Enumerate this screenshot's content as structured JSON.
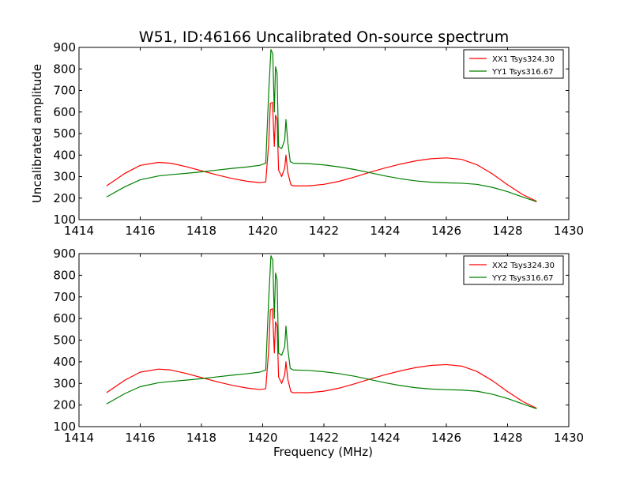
{
  "figure": {
    "title": "W51, ID:46166 Uncalibrated On-source spectrum"
  },
  "colors": {
    "xx": "#ff0000",
    "yy": "#008000"
  },
  "chart_data": [
    {
      "type": "line",
      "title": "W51, ID:46166 Uncalibrated On-source spectrum",
      "xlabel": "",
      "ylabel": "Uncalibrated amplitude",
      "xlim": [
        1414,
        1430
      ],
      "ylim": [
        100,
        900
      ],
      "xticks": [
        "1414",
        "1416",
        "1418",
        "1420",
        "1422",
        "1424",
        "1426",
        "1428",
        "1430"
      ],
      "yticks": [
        "100",
        "200",
        "300",
        "400",
        "500",
        "600",
        "700",
        "800",
        "900"
      ],
      "grid": false,
      "legend_position": "top-right",
      "series": [
        {
          "name": "XX1 Tsys324.30",
          "color": "#ff0000",
          "points": [
            [
              1414.9,
              257
            ],
            [
              1415.5,
              315
            ],
            [
              1416.0,
              352
            ],
            [
              1416.6,
              366
            ],
            [
              1417.0,
              362
            ],
            [
              1417.5,
              346
            ],
            [
              1418.0,
              327
            ],
            [
              1418.5,
              308
            ],
            [
              1419.0,
              291
            ],
            [
              1419.5,
              278
            ],
            [
              1419.9,
              272
            ],
            [
              1420.1,
              275
            ],
            [
              1420.2,
              460
            ],
            [
              1420.25,
              640
            ],
            [
              1420.32,
              645
            ],
            [
              1420.38,
              440
            ],
            [
              1420.42,
              585
            ],
            [
              1420.47,
              565
            ],
            [
              1420.52,
              330
            ],
            [
              1420.62,
              300
            ],
            [
              1420.72,
              340
            ],
            [
              1420.76,
              400
            ],
            [
              1420.82,
              320
            ],
            [
              1420.92,
              262
            ],
            [
              1421.0,
              257
            ],
            [
              1421.5,
              257
            ],
            [
              1422.0,
              264
            ],
            [
              1422.5,
              278
            ],
            [
              1423.0,
              298
            ],
            [
              1423.5,
              320
            ],
            [
              1424.0,
              340
            ],
            [
              1424.5,
              358
            ],
            [
              1425.0,
              373
            ],
            [
              1425.5,
              383
            ],
            [
              1426.0,
              387
            ],
            [
              1426.5,
              380
            ],
            [
              1427.0,
              355
            ],
            [
              1427.5,
              313
            ],
            [
              1428.0,
              262
            ],
            [
              1428.5,
              216
            ],
            [
              1428.95,
              185
            ]
          ]
        },
        {
          "name": "YY1 Tsys316.67",
          "color": "#008000",
          "points": [
            [
              1414.9,
              205
            ],
            [
              1415.5,
              253
            ],
            [
              1416.0,
              285
            ],
            [
              1416.6,
              303
            ],
            [
              1417.0,
              309
            ],
            [
              1417.5,
              315
            ],
            [
              1418.0,
              322
            ],
            [
              1418.5,
              330
            ],
            [
              1419.0,
              338
            ],
            [
              1419.5,
              345
            ],
            [
              1419.9,
              352
            ],
            [
              1420.1,
              362
            ],
            [
              1420.2,
              700
            ],
            [
              1420.27,
              890
            ],
            [
              1420.33,
              870
            ],
            [
              1420.38,
              600
            ],
            [
              1420.42,
              810
            ],
            [
              1420.47,
              780
            ],
            [
              1420.52,
              440
            ],
            [
              1420.62,
              430
            ],
            [
              1420.72,
              470
            ],
            [
              1420.76,
              565
            ],
            [
              1420.82,
              460
            ],
            [
              1420.9,
              370
            ],
            [
              1421.0,
              362
            ],
            [
              1421.5,
              360
            ],
            [
              1422.0,
              354
            ],
            [
              1422.5,
              345
            ],
            [
              1423.0,
              333
            ],
            [
              1423.5,
              318
            ],
            [
              1424.0,
              303
            ],
            [
              1424.5,
              290
            ],
            [
              1425.0,
              280
            ],
            [
              1425.5,
              274
            ],
            [
              1426.0,
              271
            ],
            [
              1426.5,
              269
            ],
            [
              1427.0,
              264
            ],
            [
              1427.5,
              250
            ],
            [
              1428.0,
              230
            ],
            [
              1428.5,
              205
            ],
            [
              1428.95,
              183
            ]
          ]
        }
      ]
    },
    {
      "type": "line",
      "title": "",
      "xlabel": "Frequency (MHz)",
      "ylabel": "",
      "xlim": [
        1414,
        1430
      ],
      "ylim": [
        100,
        900
      ],
      "xticks": [
        "1414",
        "1416",
        "1418",
        "1420",
        "1422",
        "1424",
        "1426",
        "1428",
        "1430"
      ],
      "yticks": [
        "100",
        "200",
        "300",
        "400",
        "500",
        "600",
        "700",
        "800",
        "900"
      ],
      "grid": false,
      "legend_position": "top-right",
      "series": [
        {
          "name": "XX2 Tsys324.30",
          "color": "#ff0000",
          "points": [
            [
              1414.9,
              257
            ],
            [
              1415.5,
              315
            ],
            [
              1416.0,
              352
            ],
            [
              1416.6,
              366
            ],
            [
              1417.0,
              362
            ],
            [
              1417.5,
              346
            ],
            [
              1418.0,
              327
            ],
            [
              1418.5,
              308
            ],
            [
              1419.0,
              291
            ],
            [
              1419.5,
              278
            ],
            [
              1419.9,
              272
            ],
            [
              1420.1,
              275
            ],
            [
              1420.2,
              460
            ],
            [
              1420.25,
              640
            ],
            [
              1420.32,
              645
            ],
            [
              1420.38,
              440
            ],
            [
              1420.42,
              585
            ],
            [
              1420.47,
              565
            ],
            [
              1420.52,
              330
            ],
            [
              1420.62,
              300
            ],
            [
              1420.72,
              340
            ],
            [
              1420.76,
              400
            ],
            [
              1420.82,
              320
            ],
            [
              1420.92,
              262
            ],
            [
              1421.0,
              257
            ],
            [
              1421.5,
              257
            ],
            [
              1422.0,
              264
            ],
            [
              1422.5,
              278
            ],
            [
              1423.0,
              298
            ],
            [
              1423.5,
              320
            ],
            [
              1424.0,
              340
            ],
            [
              1424.5,
              358
            ],
            [
              1425.0,
              373
            ],
            [
              1425.5,
              383
            ],
            [
              1426.0,
              387
            ],
            [
              1426.5,
              380
            ],
            [
              1427.0,
              355
            ],
            [
              1427.5,
              313
            ],
            [
              1428.0,
              262
            ],
            [
              1428.5,
              216
            ],
            [
              1428.95,
              185
            ]
          ]
        },
        {
          "name": "YY2 Tsys316.67",
          "color": "#008000",
          "points": [
            [
              1414.9,
              205
            ],
            [
              1415.5,
              253
            ],
            [
              1416.0,
              285
            ],
            [
              1416.6,
              303
            ],
            [
              1417.0,
              309
            ],
            [
              1417.5,
              315
            ],
            [
              1418.0,
              322
            ],
            [
              1418.5,
              330
            ],
            [
              1419.0,
              338
            ],
            [
              1419.5,
              345
            ],
            [
              1419.9,
              352
            ],
            [
              1420.1,
              362
            ],
            [
              1420.2,
              700
            ],
            [
              1420.27,
              890
            ],
            [
              1420.33,
              870
            ],
            [
              1420.38,
              600
            ],
            [
              1420.42,
              810
            ],
            [
              1420.47,
              780
            ],
            [
              1420.52,
              440
            ],
            [
              1420.62,
              430
            ],
            [
              1420.72,
              470
            ],
            [
              1420.76,
              565
            ],
            [
              1420.82,
              460
            ],
            [
              1420.9,
              370
            ],
            [
              1421.0,
              362
            ],
            [
              1421.5,
              360
            ],
            [
              1422.0,
              354
            ],
            [
              1422.5,
              345
            ],
            [
              1423.0,
              333
            ],
            [
              1423.5,
              318
            ],
            [
              1424.0,
              303
            ],
            [
              1424.5,
              290
            ],
            [
              1425.0,
              280
            ],
            [
              1425.5,
              274
            ],
            [
              1426.0,
              271
            ],
            [
              1426.5,
              269
            ],
            [
              1427.0,
              264
            ],
            [
              1427.5,
              250
            ],
            [
              1428.0,
              230
            ],
            [
              1428.5,
              205
            ],
            [
              1428.95,
              183
            ]
          ]
        }
      ]
    }
  ]
}
